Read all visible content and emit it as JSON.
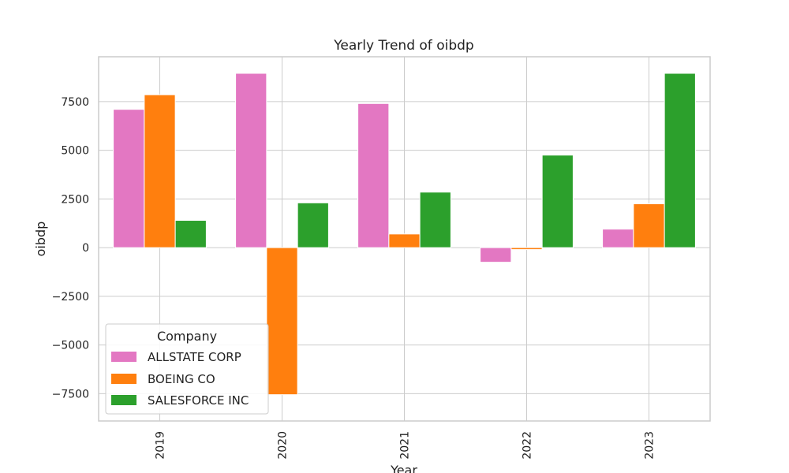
{
  "chart_data": {
    "type": "bar",
    "title": "Yearly Trend of oibdp",
    "xlabel": "Year",
    "ylabel": "oibdp",
    "categories": [
      "2019",
      "2020",
      "2021",
      "2022",
      "2023"
    ],
    "series": [
      {
        "name": "ALLSTATE CORP",
        "color": "#e377c2",
        "values": [
          7100,
          8950,
          7400,
          -750,
          950
        ]
      },
      {
        "name": "BOEING CO",
        "color": "#ff7f0e",
        "values": [
          7850,
          -7550,
          700,
          -100,
          2250
        ]
      },
      {
        "name": "SALESFORCE INC",
        "color": "#2ca02c",
        "values": [
          1400,
          2300,
          2850,
          4750,
          8950
        ]
      }
    ],
    "ylim": [
      -8900,
      9800
    ],
    "yticks": [
      -7500,
      -5000,
      -2500,
      0,
      2500,
      5000,
      7500
    ],
    "ytick_labels": [
      "−7500",
      "−5000",
      "−2500",
      "0",
      "2500",
      "5000",
      "7500"
    ],
    "grid": true,
    "legend": {
      "title": "Company",
      "placement": "lower-left"
    }
  }
}
